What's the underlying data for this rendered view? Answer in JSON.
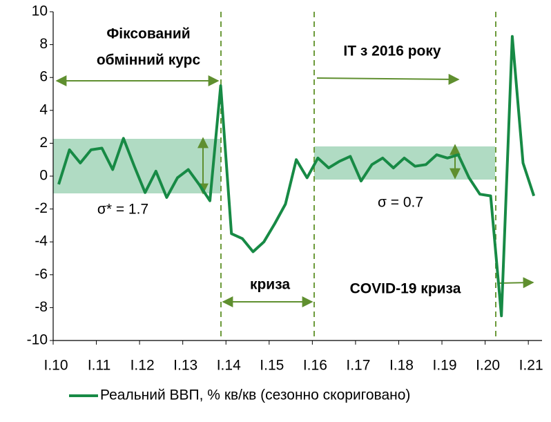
{
  "chart_data": {
    "type": "line",
    "categories": [
      "I.10",
      null,
      null,
      null,
      "I.11",
      null,
      null,
      null,
      "I.12",
      null,
      null,
      null,
      "I.13",
      null,
      null,
      null,
      "I.14",
      null,
      null,
      null,
      "I.15",
      null,
      null,
      null,
      "I.16",
      null,
      null,
      null,
      "I.17",
      null,
      null,
      null,
      "I.18",
      null,
      null,
      null,
      "I.19",
      null,
      null,
      null,
      "I.20",
      null,
      null,
      null,
      "I.21"
    ],
    "series": [
      {
        "name": "Реальний ВВП, % кв/кв (сезонно скориговано)",
        "color": "#178a45",
        "values": [
          -0.5,
          1.6,
          0.8,
          1.6,
          1.7,
          0.4,
          2.3,
          0.6,
          -1.0,
          0.3,
          -1.3,
          -0.1,
          0.4,
          -0.5,
          -1.5,
          5.5,
          -3.5,
          -3.8,
          -4.6,
          -4.0,
          -2.9,
          -1.7,
          1.0,
          -0.1,
          1.1,
          0.5,
          0.9,
          1.2,
          -0.3,
          0.7,
          1.1,
          0.5,
          1.1,
          0.6,
          0.7,
          1.3,
          1.1,
          1.3,
          -0.1,
          -1.1,
          -1.2,
          -8.5,
          8.5,
          0.8,
          -1.2
        ]
      }
    ],
    "ylim": [
      -10,
      10
    ],
    "yticks": [
      -10,
      -8,
      -6,
      -4,
      -2,
      0,
      2,
      4,
      6,
      8,
      10
    ],
    "grid": false,
    "legend": "bottom",
    "annotations": [
      "Фіксований",
      "обмінний курс",
      "IT з 2016 року",
      "σ* = 1.7",
      "σ = 0.7",
      "криза",
      "COVID-19 криза"
    ]
  }
}
